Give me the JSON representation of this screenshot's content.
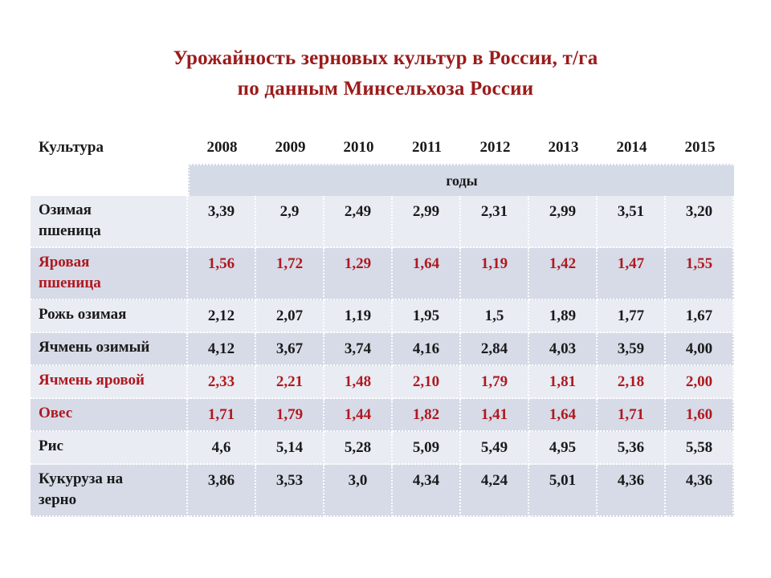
{
  "title": {
    "line1": "Урожайность зерновых культур в России, т/га",
    "line2": "по данным Минсельхоза России"
  },
  "table": {
    "header_label": "Культура",
    "years": [
      "2008",
      "2009",
      "2010",
      "2011",
      "2012",
      "2013",
      "2014",
      "2015"
    ],
    "years_caption": "годы",
    "rows": [
      {
        "name_line1": "Озимая",
        "name_line2": "пшеница",
        "values": [
          "3,39",
          "2,9",
          "2,49",
          "2,99",
          "2,31",
          "2,99",
          "3,51",
          "3,20"
        ]
      },
      {
        "name_line1": "Яровая",
        "name_line2": "пшеница",
        "values": [
          "1,56",
          "1,72",
          "1,29",
          "1,64",
          "1,19",
          "1,42",
          "1,47",
          "1,55"
        ]
      },
      {
        "name_line1": "Рожь озимая",
        "values": [
          "2,12",
          "2,07",
          "1,19",
          "1,95",
          "1,5",
          "1,89",
          "1,77",
          "1,67"
        ]
      },
      {
        "name_line1": "Ячмень озимый",
        "values": [
          "4,12",
          "3,67",
          "3,74",
          "4,16",
          "2,84",
          "4,03",
          "3,59",
          "4,00"
        ]
      },
      {
        "name_line1": "Ячмень яровой",
        "values": [
          "2,33",
          "2,21",
          "1,48",
          "2,10",
          "1,79",
          "1,81",
          "2,18",
          "2,00"
        ]
      },
      {
        "name_line1": "Овес",
        "values": [
          "1,71",
          "1,79",
          "1,44",
          "1,82",
          "1,41",
          "1,64",
          "1,71",
          "1,60"
        ]
      },
      {
        "name_line1": "Рис",
        "values": [
          "4,6",
          "5,14",
          "5,28",
          "5,09",
          "5,49",
          "4,95",
          "5,36",
          "5,58"
        ]
      },
      {
        "name_line1": "Кукуруза на",
        "name_line2": "зерно",
        "values": [
          "3,86",
          "3,53",
          "3,0",
          "4,34",
          "4,24",
          "5,01",
          "4,36",
          "4,36"
        ]
      }
    ]
  },
  "colors": {
    "title": "#9b1b1b",
    "highlight_rows": "#b01820",
    "cell_light": "#e9ecf3",
    "cell_dark": "#d6dbe7"
  }
}
